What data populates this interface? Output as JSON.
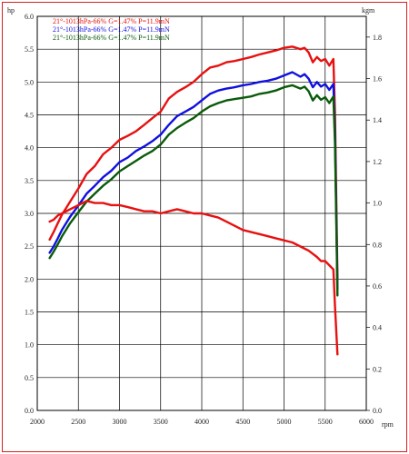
{
  "chart_data": {
    "type": "line",
    "title": "",
    "xlabel": "rpm",
    "y_left_unit": "hp",
    "y_right_unit": "kgm",
    "xlim": [
      2000,
      6000
    ],
    "ylim_left": [
      0.0,
      6.0
    ],
    "ylim_right": [
      0.0,
      1.9
    ],
    "grid": true,
    "legend_position": "top-left",
    "x_ticks": [
      "2000",
      "2500",
      "3000",
      "3500",
      "4000",
      "4500",
      "5000",
      "5500",
      "6000"
    ],
    "y_left_ticks": [
      "0.0",
      "0.5",
      "1.0",
      "1.5",
      "2.0",
      "2.5",
      "3.0",
      "3.5",
      "4.0",
      "4.5",
      "5.0",
      "5.5",
      "6.0"
    ],
    "y_right_ticks": [
      "0.0",
      "0.2",
      "0.4",
      "0.6",
      "0.8",
      "1.0",
      "1.2",
      "1.4",
      "1.6",
      "1.8"
    ],
    "series": [
      {
        "name": "21°-1013hPa-66% G=1.47% P=11.9mN",
        "color": "#e81010",
        "axis": "left",
        "x": [
          2150,
          2200,
          2250,
          2300,
          2400,
          2500,
          2600,
          2700,
          2800,
          2900,
          3000,
          3100,
          3200,
          3300,
          3400,
          3500,
          3600,
          3700,
          3800,
          3900,
          4000,
          4100,
          4200,
          4300,
          4400,
          4500,
          4600,
          4700,
          4800,
          4900,
          5000,
          5100,
          5200,
          5250,
          5300,
          5350,
          5400,
          5450,
          5500,
          5550,
          5600,
          5620,
          5650
        ],
        "y": [
          2.6,
          2.72,
          2.85,
          2.98,
          3.18,
          3.38,
          3.6,
          3.72,
          3.9,
          4.0,
          4.12,
          4.18,
          4.25,
          4.35,
          4.45,
          4.55,
          4.75,
          4.85,
          4.92,
          5.0,
          5.12,
          5.22,
          5.25,
          5.3,
          5.32,
          5.35,
          5.38,
          5.42,
          5.45,
          5.48,
          5.52,
          5.54,
          5.5,
          5.52,
          5.45,
          5.3,
          5.38,
          5.32,
          5.35,
          5.25,
          5.35,
          4.5,
          2.0
        ]
      },
      {
        "name": "21°-1013hPa-66% G=1.47% P=11.9mN",
        "color": "#1010e0",
        "axis": "left",
        "x": [
          2150,
          2200,
          2250,
          2300,
          2400,
          2500,
          2600,
          2700,
          2800,
          2900,
          3000,
          3100,
          3200,
          3300,
          3400,
          3500,
          3600,
          3700,
          3800,
          3900,
          4000,
          4100,
          4200,
          4300,
          4400,
          4500,
          4600,
          4700,
          4800,
          4900,
          5000,
          5100,
          5200,
          5250,
          5300,
          5350,
          5400,
          5450,
          5500,
          5550,
          5600,
          5620,
          5650
        ],
        "y": [
          2.4,
          2.5,
          2.62,
          2.75,
          2.95,
          3.12,
          3.3,
          3.42,
          3.55,
          3.65,
          3.78,
          3.85,
          3.95,
          4.02,
          4.1,
          4.2,
          4.35,
          4.48,
          4.55,
          4.62,
          4.72,
          4.82,
          4.87,
          4.9,
          4.92,
          4.95,
          4.97,
          5.0,
          5.02,
          5.05,
          5.1,
          5.15,
          5.08,
          5.12,
          5.05,
          4.92,
          5.0,
          4.93,
          4.97,
          4.88,
          4.97,
          4.2,
          1.85
        ]
      },
      {
        "name": "21°-1013hPa-66% G=1.47% P=11.9mN",
        "color": "#0a5a0a",
        "axis": "left",
        "x": [
          2150,
          2200,
          2250,
          2300,
          2400,
          2500,
          2600,
          2700,
          2800,
          2900,
          3000,
          3100,
          3200,
          3300,
          3400,
          3500,
          3600,
          3700,
          3800,
          3900,
          4000,
          4100,
          4200,
          4300,
          4400,
          4500,
          4600,
          4700,
          4800,
          4900,
          5000,
          5100,
          5200,
          5250,
          5300,
          5350,
          5400,
          5450,
          5500,
          5550,
          5600,
          5620,
          5650
        ],
        "y": [
          2.32,
          2.42,
          2.53,
          2.65,
          2.85,
          3.02,
          3.18,
          3.3,
          3.42,
          3.52,
          3.64,
          3.72,
          3.8,
          3.88,
          3.95,
          4.05,
          4.2,
          4.3,
          4.38,
          4.45,
          4.55,
          4.63,
          4.68,
          4.72,
          4.74,
          4.76,
          4.78,
          4.82,
          4.84,
          4.87,
          4.92,
          4.95,
          4.9,
          4.93,
          4.86,
          4.72,
          4.8,
          4.73,
          4.77,
          4.68,
          4.78,
          4.05,
          1.75
        ]
      },
      {
        "name": "",
        "color": "#e81010",
        "axis": "right",
        "x": [
          2150,
          2200,
          2250,
          2300,
          2400,
          2500,
          2600,
          2700,
          2800,
          2900,
          3000,
          3100,
          3200,
          3300,
          3400,
          3500,
          3600,
          3700,
          3800,
          3900,
          4000,
          4100,
          4200,
          4300,
          4400,
          4500,
          4600,
          4700,
          4800,
          4900,
          5000,
          5100,
          5200,
          5300,
          5400,
          5450,
          5500,
          5550,
          5600,
          5620,
          5650
        ],
        "y": [
          0.91,
          0.92,
          0.94,
          0.95,
          0.97,
          0.99,
          1.01,
          1.0,
          1.0,
          0.99,
          0.99,
          0.98,
          0.97,
          0.96,
          0.96,
          0.95,
          0.96,
          0.97,
          0.96,
          0.95,
          0.95,
          0.94,
          0.93,
          0.91,
          0.89,
          0.87,
          0.86,
          0.85,
          0.84,
          0.83,
          0.82,
          0.81,
          0.79,
          0.77,
          0.74,
          0.72,
          0.72,
          0.7,
          0.68,
          0.5,
          0.27
        ]
      }
    ]
  }
}
